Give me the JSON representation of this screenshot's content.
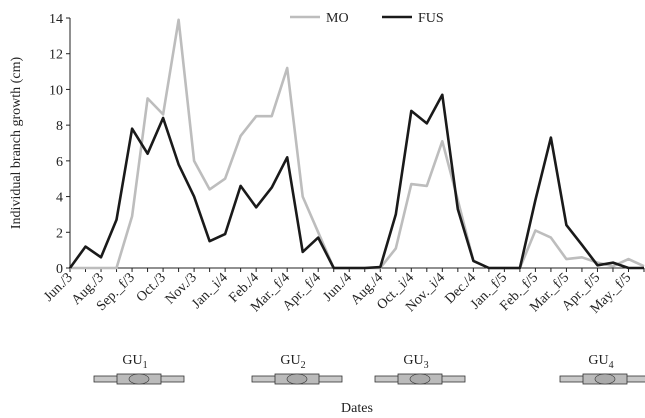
{
  "chart_data": {
    "type": "line",
    "y_label": "Individual branch growth (cm)",
    "x_label": "Dates",
    "categories": [
      "Jun./3",
      null,
      "Aug./3",
      null,
      "Sep._f/3",
      null,
      "Oct./3",
      null,
      "Nov./3",
      null,
      "Jan._i/4",
      null,
      "Feb./4",
      null,
      "Mar._f/4",
      null,
      "Apr._f/4",
      null,
      "Jun./4",
      null,
      "Aug./4",
      null,
      "Oct._i/4",
      null,
      "Nov._i/4",
      null,
      "Dec./4",
      null,
      "Jan._f/5",
      null,
      "Feb._f/5",
      null,
      "Mar._f/5",
      null,
      "Apr._f/5",
      null,
      "May._f/5",
      null
    ],
    "series": [
      {
        "name": "MO",
        "color": "#bdbdbd",
        "values": [
          0,
          0,
          0,
          0,
          2.9,
          9.5,
          8.6,
          13.9,
          6.0,
          4.4,
          5.0,
          7.4,
          8.5,
          8.5,
          11.2,
          4.0,
          2.0,
          0,
          0,
          0,
          0,
          1.1,
          4.7,
          4.6,
          7.1,
          3.8,
          0.4,
          0,
          0,
          0,
          2.1,
          1.7,
          0.5,
          0.6,
          0.3,
          0.1,
          0.5,
          0.1
        ]
      },
      {
        "name": "FUS",
        "color": "#1a1a1a",
        "values": [
          0,
          1.2,
          0.6,
          2.7,
          7.8,
          6.4,
          8.4,
          5.8,
          4.0,
          1.5,
          1.9,
          4.6,
          3.4,
          4.5,
          6.2,
          0.9,
          1.7,
          0,
          0,
          0,
          0.05,
          3.0,
          8.8,
          8.1,
          9.7,
          3.3,
          0.4,
          0,
          0,
          0,
          3.8,
          7.3,
          2.4,
          1.3,
          0.15,
          0.3,
          0,
          0
        ]
      }
    ],
    "ylim": [
      0,
      14
    ],
    "yticks": [
      0,
      2,
      4,
      6,
      8,
      10,
      12,
      14
    ],
    "grid": false,
    "legend": "top",
    "annotations": [
      {
        "text": "GU",
        "subscript": "1"
      },
      {
        "text": "GU",
        "subscript": "2"
      },
      {
        "text": "GU",
        "subscript": "3"
      },
      {
        "text": "GU",
        "subscript": "4"
      }
    ]
  }
}
